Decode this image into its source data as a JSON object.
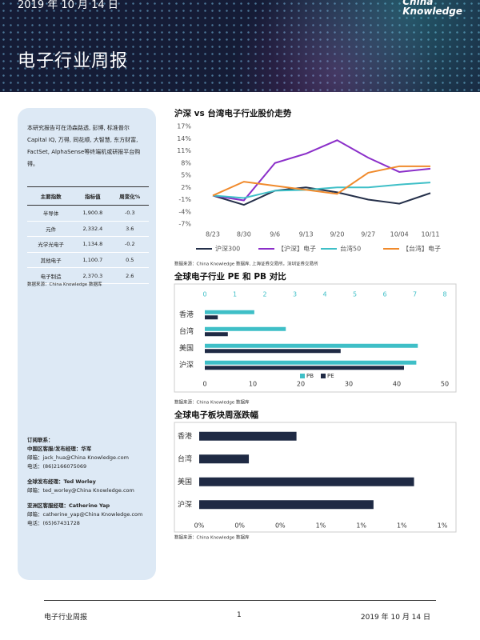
{
  "header": {
    "date": "2019 年 10 月 14 日",
    "brand": [
      "China",
      "Knowledge"
    ],
    "title": "电子行业周报"
  },
  "sidebar": {
    "intro": "本研究报告可在汤森路透, 彭博, 标准普尔 Capital IQ, 万得, 同花顺, 大智慧, 东方财富, FactSet, AlphaSense等终端机或研报平台购得。",
    "table": {
      "columns": [
        "主要指数",
        "指标值",
        "周变化%"
      ],
      "rows": [
        [
          "半导体",
          "1,900.8",
          "-0.3"
        ],
        [
          "元件",
          "2,332.4",
          "3.6"
        ],
        [
          "光学光电子",
          "1,134.8",
          "-0.2"
        ],
        [
          "其他电子",
          "1,100.7",
          "0.5"
        ],
        [
          "电子制造",
          "2,370.3",
          "2.6"
        ]
      ]
    },
    "table_source": "数据来源：China Knowledge 数据库",
    "contacts": {
      "heading": "订阅联系：",
      "groups": [
        [
          "中国区客服/发布经理：华军",
          "邮箱：jack_hua@China Knowledge.com",
          "电话：(86)2166075069"
        ],
        [
          "全球发布经理：Ted Worley",
          "邮箱：ted_worley@China Knowledge.com"
        ],
        [
          "亚洲区客服经理：Catherine Yap",
          "邮箱：catherine_yap@China Knowledge.com",
          "电话：(65)67431728"
        ]
      ]
    }
  },
  "chart_data": [
    {
      "type": "line",
      "title": "沪深 vs 台湾电子行业股价走势",
      "categories": [
        "8/23",
        "8/30",
        "9/6",
        "9/13",
        "9/20",
        "9/27",
        "10/04",
        "10/11"
      ],
      "series": [
        {
          "name": "沪深300",
          "color": "#25304a",
          "values": [
            0,
            -2.3,
            1.2,
            2,
            0.8,
            -1,
            -2,
            0.6
          ]
        },
        {
          "name": "【沪深】电子",
          "color": "#8b2fc9",
          "values": [
            0,
            -1.2,
            8,
            10.3,
            13.6,
            9.3,
            5.8,
            6.6
          ]
        },
        {
          "name": "台湾50",
          "color": "#3fbfc7",
          "values": [
            0,
            -0.6,
            1.2,
            1.4,
            2,
            2,
            2.7,
            3.2
          ]
        },
        {
          "name": "【台湾】电子",
          "color": "#f08a2c",
          "values": [
            0,
            3.4,
            2.4,
            1.4,
            0.4,
            5.6,
            7.2,
            7.2
          ]
        }
      ],
      "ylim": [
        -7,
        17
      ],
      "yticks": [
        {
          "value": 17,
          "label": "17%"
        },
        {
          "value": 14,
          "label": "14%"
        },
        {
          "value": 11,
          "label": "11%"
        },
        {
          "value": 8,
          "label": "8%"
        },
        {
          "value": 5,
          "label": "5%"
        },
        {
          "value": 2,
          "label": "2%"
        },
        {
          "value": -1,
          "label": "-1%"
        },
        {
          "value": -4,
          "label": "-4%"
        },
        {
          "value": -7,
          "label": "-7%"
        }
      ],
      "grid": false,
      "legend": "bottom",
      "source": "数据来源：China Knowledge 数据库, 上海证券交易所，深圳证券交易所"
    },
    {
      "type": "bar",
      "orientation": "horizontal",
      "title": "全球电子行业 PE 和 PB 对比",
      "categories": [
        "香港",
        "台湾",
        "美国",
        "沪深"
      ],
      "series": [
        {
          "name": "PB",
          "color": "#3fbfc7",
          "axis": "x2",
          "values": [
            1.65,
            2.7,
            7.1,
            7.05
          ]
        },
        {
          "name": "PE",
          "color": "#1f2a44",
          "values": [
            2.7,
            4.8,
            28.3,
            41.5
          ]
        }
      ],
      "xlim": [
        0,
        50
      ],
      "xticks": [
        0,
        10,
        20,
        30,
        40,
        50
      ],
      "x2lim": [
        0,
        8
      ],
      "x2ticks": [
        0,
        1,
        2,
        3,
        4,
        5,
        6,
        7,
        8
      ],
      "grid": false,
      "legend": "bottom",
      "source": "数据来源：China Knowledge 数据库"
    },
    {
      "type": "bar",
      "orientation": "horizontal",
      "title": "全球电子板块周涨跌幅",
      "categories": [
        "香港",
        "台湾",
        "美国",
        "沪深"
      ],
      "values": [
        0.48,
        0.245,
        1.06,
        0.86
      ],
      "color": "#1f2a44",
      "xlim": [
        0,
        1.2
      ],
      "xticks": [
        {
          "value": 0,
          "label": "0%"
        },
        {
          "value": 0.2,
          "label": "0%"
        },
        {
          "value": 0.4,
          "label": "0%"
        },
        {
          "value": 0.6,
          "label": "1%"
        },
        {
          "value": 0.8,
          "label": "1%"
        },
        {
          "value": 1,
          "label": "1%"
        },
        {
          "value": 1.2,
          "label": "1%"
        }
      ],
      "grid": false,
      "source": "数据来源：China Knowledge 数据库"
    }
  ],
  "footer": {
    "left": "电子行业周报",
    "page": "1",
    "date": "2019 年 10 月 14 日"
  }
}
